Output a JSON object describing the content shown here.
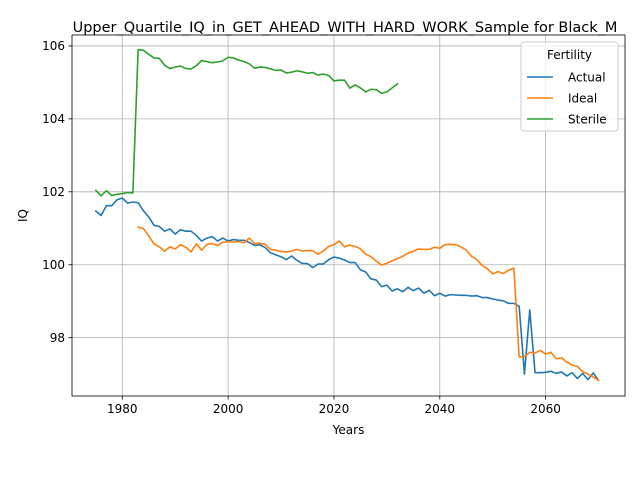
{
  "chart_data": {
    "type": "line",
    "title": "Upper_Quartile_IQ_in_GET_AHEAD_WITH_HARD_WORK_Sample for Black_M",
    "xlabel": "Years",
    "ylabel": "IQ",
    "xlim": [
      1970.5,
      2075
    ],
    "ylim": [
      96.4,
      106.3
    ],
    "xticks": [
      1980,
      2000,
      2020,
      2040,
      2060
    ],
    "yticks": [
      98,
      100,
      102,
      104,
      106
    ],
    "grid": true,
    "legend": {
      "title": "Fertility",
      "placement": "top-right"
    },
    "series": [
      {
        "name": "Actual",
        "color": "#1f77b4",
        "x": [
          1975,
          1976,
          1977,
          1978,
          1979,
          1980,
          1981,
          1982,
          1983,
          1984,
          1985,
          1986,
          1987,
          1988,
          1989,
          1990,
          1991,
          1992,
          1993,
          1994,
          1995,
          1996,
          1997,
          1998,
          1999,
          2000,
          2001,
          2002,
          2003,
          2004,
          2005,
          2006,
          2007,
          2008,
          2009,
          2010,
          2011,
          2012,
          2013,
          2014,
          2015,
          2016,
          2017,
          2018,
          2019,
          2020,
          2021,
          2022,
          2023,
          2024,
          2025,
          2026,
          2027,
          2028,
          2029,
          2030,
          2031,
          2032,
          2033,
          2034,
          2035,
          2036,
          2037,
          2038,
          2039,
          2040,
          2041,
          2042,
          2043,
          2044,
          2045,
          2046,
          2047,
          2048,
          2049,
          2050,
          2051,
          2052,
          2053,
          2054,
          2055,
          2056,
          2057,
          2058,
          2059,
          2060,
          2061,
          2062,
          2063,
          2064,
          2065,
          2066,
          2067,
          2068,
          2069,
          2070
        ],
        "values": [
          101.47,
          101.35,
          101.62,
          101.62,
          101.78,
          101.83,
          101.69,
          101.72,
          101.7,
          101.48,
          101.31,
          101.08,
          101.05,
          100.92,
          100.98,
          100.84,
          100.96,
          100.92,
          100.92,
          100.8,
          100.65,
          100.73,
          100.77,
          100.65,
          100.73,
          100.65,
          100.69,
          100.67,
          100.67,
          100.61,
          100.53,
          100.55,
          100.47,
          100.33,
          100.27,
          100.22,
          100.14,
          100.24,
          100.12,
          100.04,
          100.03,
          99.92,
          100.02,
          100.02,
          100.14,
          100.21,
          100.18,
          100.13,
          100.06,
          100.06,
          99.86,
          99.8,
          99.61,
          99.58,
          99.4,
          99.44,
          99.28,
          99.34,
          99.26,
          99.38,
          99.29,
          99.36,
          99.22,
          99.3,
          99.15,
          99.22,
          99.14,
          99.18,
          99.17,
          99.16,
          99.16,
          99.14,
          99.15,
          99.1,
          99.1,
          99.06,
          99.03,
          99.01,
          98.94,
          98.94,
          98.86,
          97.0,
          98.76,
          97.04,
          97.04,
          97.05,
          97.08,
          97.02,
          97.06,
          96.95,
          97.04,
          96.88,
          97.02,
          96.85,
          97.03,
          96.83
        ]
      },
      {
        "name": "Ideal",
        "color": "#ff7f0e",
        "x": [
          1983,
          1984,
          1985,
          1986,
          1987,
          1988,
          1989,
          1990,
          1991,
          1992,
          1993,
          1994,
          1995,
          1996,
          1997,
          1998,
          1999,
          2000,
          2001,
          2002,
          2003,
          2004,
          2005,
          2006,
          2007,
          2008,
          2009,
          2010,
          2011,
          2012,
          2013,
          2014,
          2015,
          2016,
          2017,
          2018,
          2019,
          2020,
          2021,
          2022,
          2023,
          2024,
          2025,
          2026,
          2027,
          2028,
          2029,
          2030,
          2031,
          2032,
          2033,
          2034,
          2035,
          2036,
          2037,
          2038,
          2039,
          2040,
          2041,
          2042,
          2043,
          2044,
          2045,
          2046,
          2047,
          2048,
          2049,
          2050,
          2051,
          2052,
          2053,
          2054,
          2055,
          2056,
          2057,
          2058,
          2059,
          2060,
          2061,
          2062,
          2063,
          2064,
          2065,
          2066,
          2067,
          2068,
          2069,
          2070
        ],
        "values": [
          101.03,
          100.99,
          100.79,
          100.57,
          100.49,
          100.37,
          100.49,
          100.43,
          100.55,
          100.48,
          100.35,
          100.57,
          100.4,
          100.56,
          100.58,
          100.53,
          100.62,
          100.63,
          100.62,
          100.64,
          100.6,
          100.73,
          100.58,
          100.59,
          100.56,
          100.42,
          100.4,
          100.36,
          100.35,
          100.37,
          100.42,
          100.38,
          100.39,
          100.38,
          100.29,
          100.38,
          100.5,
          100.55,
          100.65,
          100.49,
          100.54,
          100.5,
          100.44,
          100.29,
          100.22,
          100.1,
          99.99,
          100.04,
          100.11,
          100.17,
          100.23,
          100.32,
          100.37,
          100.43,
          100.42,
          100.42,
          100.48,
          100.45,
          100.55,
          100.56,
          100.55,
          100.49,
          100.4,
          100.23,
          100.14,
          99.98,
          99.89,
          99.75,
          99.81,
          99.76,
          99.85,
          99.91,
          97.47,
          97.48,
          97.6,
          97.58,
          97.65,
          97.55,
          97.6,
          97.42,
          97.45,
          97.33,
          97.25,
          97.21,
          97.07,
          97.0,
          96.92,
          96.83
        ]
      },
      {
        "name": "Sterile",
        "color": "#2ca02c",
        "x": [
          1975,
          1976,
          1977,
          1978,
          1979,
          1980,
          1981,
          1982,
          1983,
          1984,
          1985,
          1986,
          1987,
          1988,
          1989,
          1990,
          1991,
          1992,
          1993,
          1994,
          1995,
          1996,
          1997,
          1998,
          1999,
          2000,
          2001,
          2002,
          2003,
          2004,
          2005,
          2006,
          2007,
          2008,
          2009,
          2010,
          2011,
          2012,
          2013,
          2014,
          2015,
          2016,
          2017,
          2018,
          2019,
          2020,
          2021,
          2022,
          2023,
          2024,
          2025,
          2026,
          2027,
          2028,
          2029,
          2030,
          2031,
          2032
        ],
        "values": [
          102.04,
          101.89,
          102.03,
          101.9,
          101.93,
          101.95,
          101.98,
          101.97,
          105.9,
          105.88,
          105.77,
          105.67,
          105.66,
          105.47,
          105.38,
          105.42,
          105.45,
          105.38,
          105.37,
          105.46,
          105.6,
          105.57,
          105.54,
          105.56,
          105.59,
          105.69,
          105.67,
          105.61,
          105.57,
          105.51,
          105.39,
          105.42,
          105.41,
          105.37,
          105.33,
          105.34,
          105.26,
          105.28,
          105.32,
          105.29,
          105.25,
          105.27,
          105.2,
          105.23,
          105.19,
          105.04,
          105.06,
          105.06,
          104.84,
          104.93,
          104.85,
          104.74,
          104.81,
          104.8,
          104.7,
          104.74,
          104.85,
          104.96
        ]
      }
    ]
  }
}
